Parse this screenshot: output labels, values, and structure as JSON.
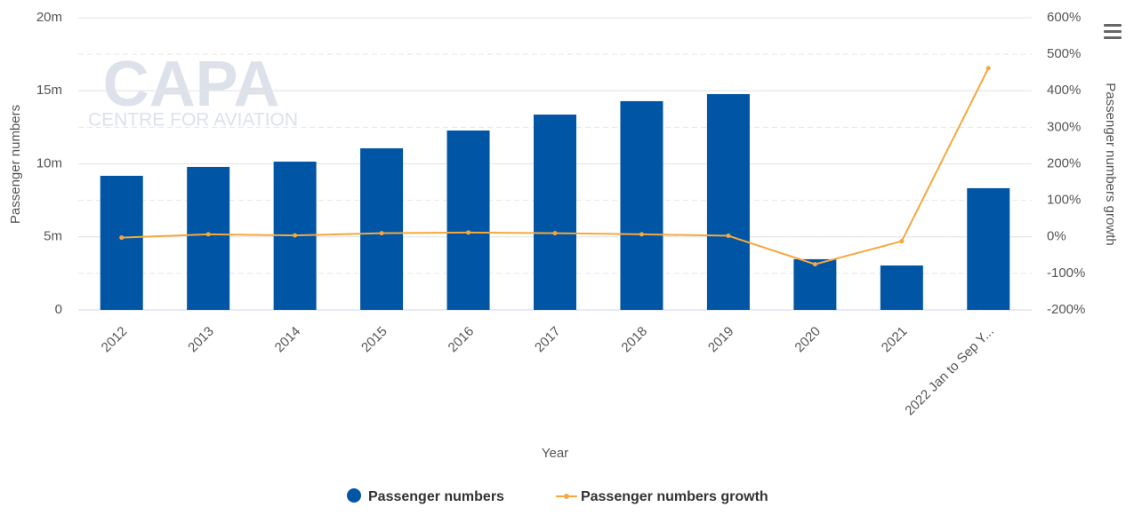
{
  "chart_data": {
    "type": "bar-line",
    "watermark": {
      "logo": "CAPA",
      "subtitle": "CENTRE FOR AVIATION"
    },
    "x_label": "Year",
    "y_label": "Passenger numbers",
    "y2_label": "Passenger numbers growth",
    "categories": [
      "2012",
      "2013",
      "2014",
      "2015",
      "2016",
      "2017",
      "2018",
      "2019",
      "2020",
      "2021",
      "2022 Jan to Sep Y..."
    ],
    "series": [
      {
        "name": "Passenger numbers",
        "type": "bar",
        "color": "#0055a5",
        "values": [
          9180000,
          9790000,
          10150000,
          11060000,
          12280000,
          13370000,
          14290000,
          14770000,
          3470000,
          3040000,
          8330000
        ]
      },
      {
        "name": "Passenger numbers growth",
        "type": "line",
        "axis": "y2",
        "color": "#f5a83c",
        "values": [
          -2,
          7,
          4,
          10,
          12,
          10,
          7,
          3,
          -75,
          -12,
          462
        ]
      }
    ],
    "ylim": [
      0,
      20000000
    ],
    "yticks": [
      0,
      {
        "value": 5000000,
        "label": "5m"
      },
      {
        "value": 10000000,
        "label": "10m"
      },
      {
        "value": 15000000,
        "label": "15m"
      },
      {
        "value": 20000000,
        "label": "20m"
      }
    ],
    "y2lim": [
      -200,
      600
    ],
    "y2ticks": [
      {
        "value": -200,
        "label": "-200%"
      },
      {
        "value": -100,
        "label": "-100%"
      },
      {
        "value": 0,
        "label": "0%"
      },
      {
        "value": 100,
        "label": "100%"
      },
      {
        "value": 200,
        "label": "200%"
      },
      {
        "value": 300,
        "label": "300%"
      },
      {
        "value": 400,
        "label": "400%"
      },
      {
        "value": 500,
        "label": "500%"
      },
      {
        "value": 600,
        "label": "600%"
      }
    ],
    "grid": true
  }
}
